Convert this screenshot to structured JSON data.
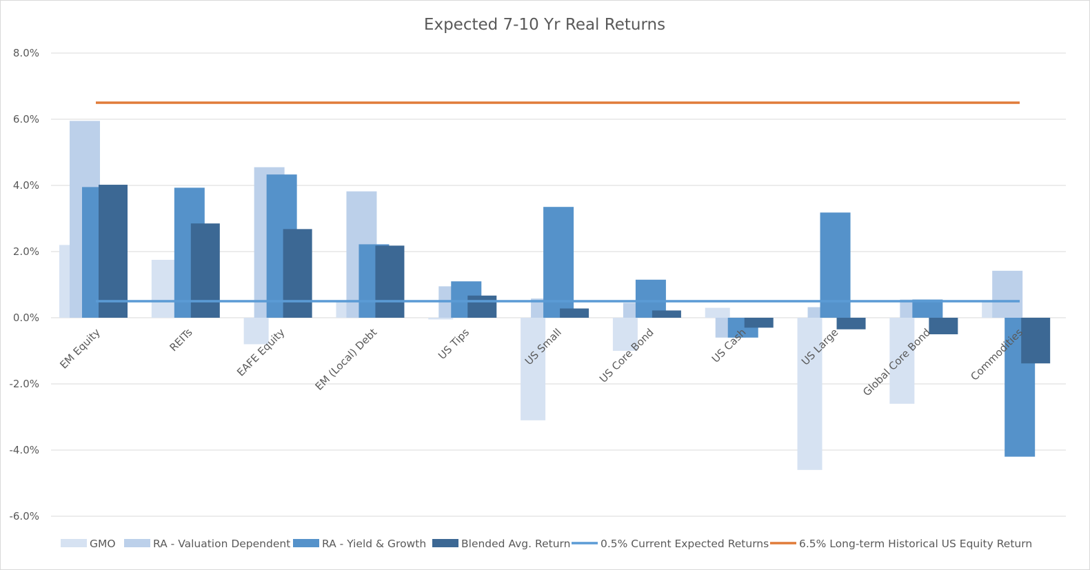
{
  "chart_data": {
    "type": "bar",
    "title": "Expected 7-10 Yr Real Returns",
    "xlabel": "",
    "ylabel": "",
    "ylim": [
      -6,
      8
    ],
    "ytick_values": [
      -6,
      -4,
      -2,
      0,
      2,
      4,
      6,
      8
    ],
    "ytick_labels": [
      "-6.0%",
      "-4.0%",
      "-2.0%",
      "0.0%",
      "2.0%",
      "4.0%",
      "6.0%",
      "8.0%"
    ],
    "grid": true,
    "legend_position": "bottom",
    "categories": [
      "EM Equity",
      "REITs",
      "EAFE Equity",
      "EM (Local) Debt",
      "US Tips",
      "US Small",
      "US Core Bond",
      "US Cash",
      "US Large",
      "Global Core Bond",
      "Commodities"
    ],
    "series": [
      {
        "name": "GMO",
        "kind": "bar",
        "color": "#d6e2f2",
        "values": [
          2.2,
          1.75,
          -0.8,
          0.5,
          -0.05,
          -3.1,
          -1.0,
          0.3,
          -4.6,
          -2.6,
          0.5
        ]
      },
      {
        "name": "RA - Valuation Dependent",
        "kind": "bar",
        "color": "#bcd0ea",
        "values": [
          5.95,
          0.0,
          4.55,
          3.82,
          0.95,
          0.58,
          0.45,
          -0.6,
          0.32,
          0.55,
          1.42
        ]
      },
      {
        "name": "RA - Yield & Growth",
        "kind": "bar",
        "color": "#5592ca",
        "values": [
          3.95,
          3.93,
          4.33,
          2.22,
          1.1,
          3.35,
          1.15,
          -0.6,
          3.18,
          0.55,
          -4.2
        ]
      },
      {
        "name": "Blended Avg. Return",
        "kind": "bar",
        "color": "#3c6894",
        "values": [
          4.02,
          2.85,
          2.68,
          2.18,
          0.67,
          0.28,
          0.22,
          -0.3,
          -0.35,
          -0.5,
          -1.38
        ]
      },
      {
        "name": "0.5% Current Expected Returns",
        "kind": "line",
        "color": "#5b9bd5",
        "value": 0.5
      },
      {
        "name": "6.5% Long-term Historical US Equity Return",
        "kind": "line",
        "color": "#e07b39",
        "value": 6.5
      }
    ]
  }
}
